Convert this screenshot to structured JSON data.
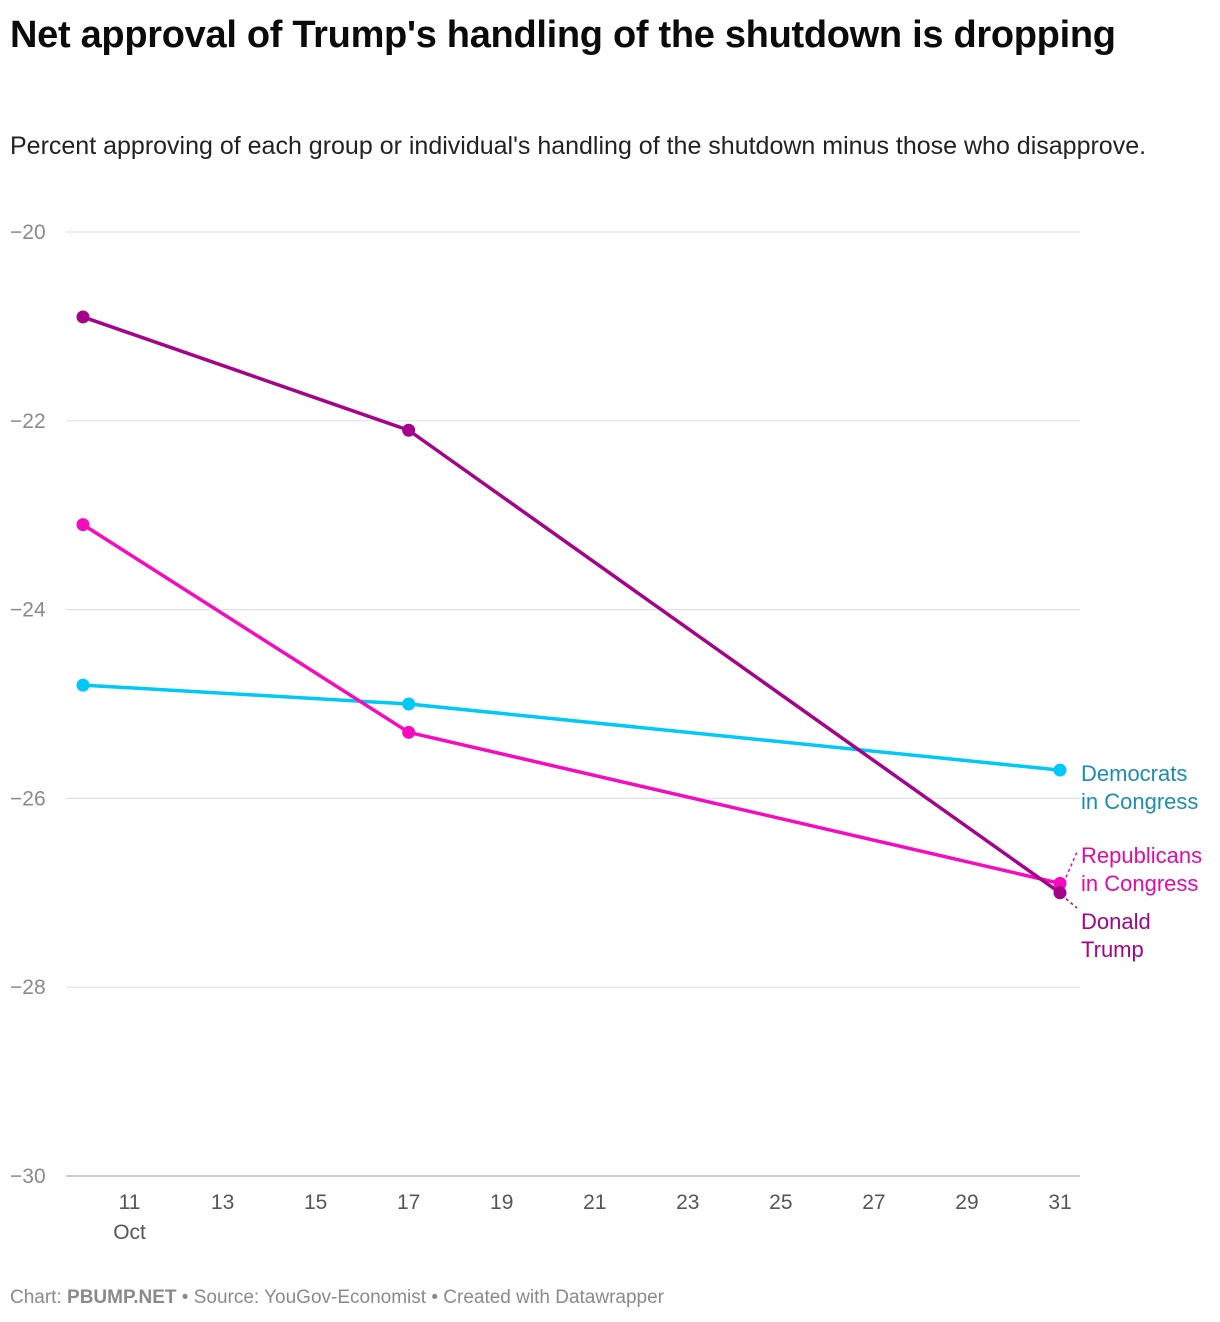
{
  "header": {
    "title": "Net approval of Trump's handling of the shutdown is dropping",
    "subtitle": "Percent approving of each group or individual's handling of the shutdown minus those who disapprove."
  },
  "footer": {
    "chart_prefix": "Chart: ",
    "chart_by": "PBUMP.NET",
    "separator1": " • ",
    "source": "Source: YouGov-Economist",
    "separator2": " • ",
    "created_with": "Created with Datawrapper"
  },
  "chart_data": {
    "type": "line",
    "title": "Net approval of Trump's handling of the shutdown is dropping",
    "subtitle": "Percent approving of each group or individual's handling of the shutdown minus those who disapprove.",
    "xlabel": "",
    "ylabel": "",
    "x_range": [
      "Oct 10",
      "Oct 31"
    ],
    "ylim": [
      -30,
      -20
    ],
    "y_ticks": [
      -20,
      -22,
      -24,
      -26,
      -28,
      -30
    ],
    "y_tick_labels": [
      "−20",
      "−22",
      "−24",
      "−26",
      "−28",
      "−30"
    ],
    "x_ticks": [
      11,
      13,
      15,
      17,
      19,
      21,
      23,
      25,
      27,
      29,
      31
    ],
    "x_tick_labels": [
      "11",
      "13",
      "15",
      "17",
      "19",
      "21",
      "23",
      "25",
      "27",
      "29",
      "31"
    ],
    "x_month_label": "Oct",
    "grid": true,
    "legend": "direct labels at right end of lines",
    "series": [
      {
        "name": "Democrats in Congress",
        "label_lines": [
          "Democrats",
          "in Congress"
        ],
        "color": "#00c8f8",
        "label_color": "#1a8db0",
        "points": [
          [
            10,
            -24.8
          ],
          [
            17,
            -25.0
          ],
          [
            31,
            -25.7
          ]
        ]
      },
      {
        "name": "Republicans in Congress",
        "label_lines": [
          "Republicans",
          "in Congress"
        ],
        "color": "#f50bc0",
        "label_color": "#e10aa8",
        "points": [
          [
            10,
            -23.1
          ],
          [
            17,
            -25.3
          ],
          [
            31,
            -26.9
          ]
        ]
      },
      {
        "name": "Donald Trump",
        "label_lines": [
          "Donald",
          "Trump"
        ],
        "color": "#a3048a",
        "label_color": "#a3048a",
        "points": [
          [
            10,
            -20.9
          ],
          [
            17,
            -22.1
          ],
          [
            31,
            -27.0
          ]
        ]
      }
    ]
  }
}
